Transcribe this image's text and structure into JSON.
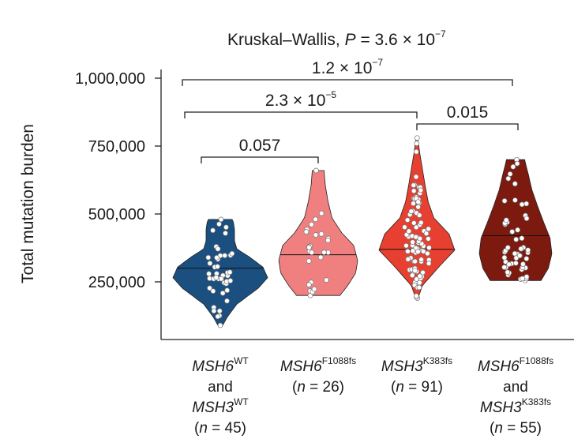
{
  "chart_data": {
    "type": "violin",
    "title_parts": {
      "test": "Kruskal–Wallis, ",
      "p": "P",
      "eq": " = 3.6 × 10",
      "exp": "−7"
    },
    "ylabel": "Total mutation burden",
    "ylim": [
      90000,
      1000000
    ],
    "yticks": [
      250000,
      500000,
      750000,
      1000000
    ],
    "ytick_labels": [
      "250,000",
      "500,000",
      "750,000",
      "1,000,000"
    ],
    "groups": [
      {
        "gene1": "MSH6",
        "sup1": "WT",
        "and": "and",
        "gene2": "MSH3",
        "sup2": "WT",
        "n_label": "(n = 45)",
        "n": 45,
        "color": "#1b4f80",
        "median": 300000,
        "min": 90000,
        "max": 480000
      },
      {
        "gene1": "MSH6",
        "sup1": "F1088fs",
        "n_label": "(n = 26)",
        "n": 26,
        "color": "#f08080",
        "median": 350000,
        "min": 200000,
        "max": 660000
      },
      {
        "gene1": "MSH3",
        "sup1": "K383fs",
        "n_label": "(n = 91)",
        "n": 91,
        "color": "#e84030",
        "median": 370000,
        "min": 190000,
        "max": 780000
      },
      {
        "gene1": "MSH6",
        "sup1": "F1088fs",
        "and": "and",
        "gene2": "MSH3",
        "sup2": "K383fs",
        "n_label": "(n = 55)",
        "n": 55,
        "color": "#7d1a10",
        "median": 420000,
        "min": 255000,
        "max": 700000
      }
    ],
    "comparisons": [
      {
        "groups": [
          1,
          2
        ],
        "label": "0.057",
        "mant": "",
        "exp": ""
      },
      {
        "groups": [
          1,
          3
        ],
        "label": "",
        "mant": "2.3 × 10",
        "exp": "−5"
      },
      {
        "groups": [
          3,
          4
        ],
        "label": "0.015",
        "mant": "",
        "exp": ""
      },
      {
        "groups": [
          1,
          4
        ],
        "label": "",
        "mant": "1.2 × 10",
        "exp": "−7"
      }
    ]
  }
}
